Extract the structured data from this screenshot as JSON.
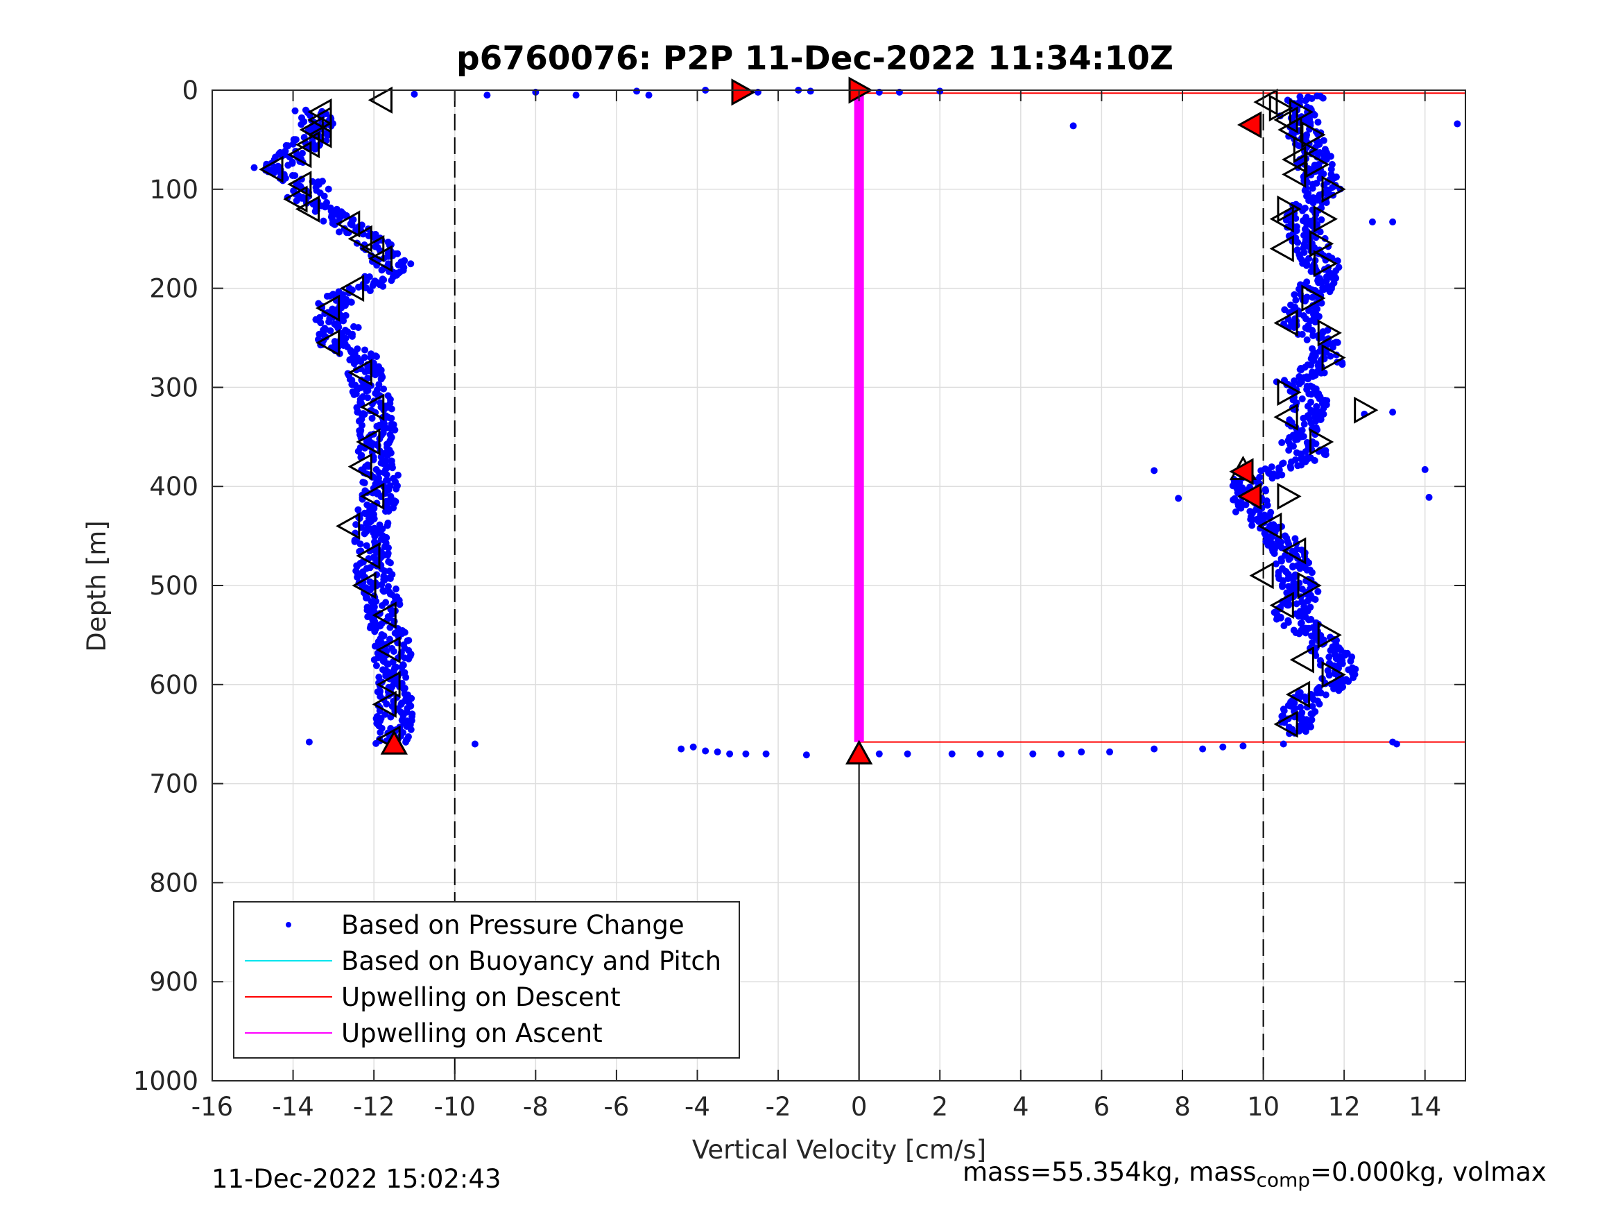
{
  "chart_data": {
    "type": "scatter",
    "title": "p6760076: P2P 11-Dec-2022 11:34:10Z",
    "xlabel": "Vertical Velocity [cm/s]",
    "ylabel": "Depth [m]",
    "xlim": [
      -16,
      15
    ],
    "ylim": [
      0,
      1000
    ],
    "y_reversed": true,
    "grid": true,
    "xticks": [
      -16,
      -14,
      -12,
      -10,
      -8,
      -6,
      -4,
      -2,
      0,
      2,
      4,
      6,
      8,
      10,
      12,
      14
    ],
    "yticks": [
      0,
      100,
      200,
      300,
      400,
      500,
      600,
      700,
      800,
      900,
      1000
    ],
    "legend_position": "bottom-left",
    "legend": [
      {
        "label": "Based on Pressure Change",
        "style": "dot",
        "color": "#0000ff"
      },
      {
        "label": "Based on Buoyancy and Pitch",
        "style": "line",
        "color": "#00e5ee"
      },
      {
        "label": "Upwelling on Descent",
        "style": "line",
        "color": "#ff0000"
      },
      {
        "label": "Upwelling on Ascent",
        "style": "line",
        "color": "#ff00ff"
      }
    ],
    "reference_lines": {
      "dashed_x": [
        -10,
        10
      ],
      "zero_line": {
        "x": 0,
        "from_depth": 670,
        "to_depth": 1000
      }
    },
    "series": [
      {
        "name": "Based on Pressure Change",
        "style": "scatter",
        "color": "#0000ff",
        "descent_profile": [
          [
            -13.5,
            20
          ],
          [
            -13.4,
            35
          ],
          [
            -13.6,
            50
          ],
          [
            -13.8,
            60
          ],
          [
            -14.2,
            72
          ],
          [
            -14.8,
            80
          ],
          [
            -13.5,
            95
          ],
          [
            -13.7,
            110
          ],
          [
            -12.9,
            130
          ],
          [
            -12.2,
            150
          ],
          [
            -11.7,
            165
          ],
          [
            -11.5,
            178
          ],
          [
            -12.0,
            195
          ],
          [
            -12.9,
            210
          ],
          [
            -13.2,
            225
          ],
          [
            -12.8,
            240
          ],
          [
            -13.1,
            255
          ],
          [
            -12.2,
            270
          ],
          [
            -12.2,
            290
          ],
          [
            -12.0,
            315
          ],
          [
            -11.9,
            340
          ],
          [
            -12.0,
            365
          ],
          [
            -11.8,
            390
          ],
          [
            -11.9,
            415
          ],
          [
            -12.1,
            440
          ],
          [
            -12.0,
            465
          ],
          [
            -12.0,
            490
          ],
          [
            -11.8,
            515
          ],
          [
            -11.7,
            540
          ],
          [
            -11.5,
            565
          ],
          [
            -11.6,
            590
          ],
          [
            -11.5,
            615
          ],
          [
            -11.5,
            640
          ],
          [
            -11.5,
            660
          ]
        ],
        "ascent_profile": [
          [
            11.2,
            5
          ],
          [
            10.8,
            20
          ],
          [
            11.0,
            40
          ],
          [
            11.2,
            60
          ],
          [
            11.3,
            80
          ],
          [
            11.5,
            100
          ],
          [
            11.0,
            120
          ],
          [
            11.0,
            140
          ],
          [
            11.2,
            160
          ],
          [
            11.5,
            180
          ],
          [
            11.3,
            200
          ],
          [
            11.0,
            215
          ],
          [
            10.9,
            235
          ],
          [
            11.6,
            255
          ],
          [
            11.6,
            275
          ],
          [
            10.7,
            295
          ],
          [
            11.2,
            315
          ],
          [
            11.0,
            335
          ],
          [
            10.8,
            355
          ],
          [
            11.3,
            370
          ],
          [
            9.6,
            395
          ],
          [
            9.7,
            415
          ],
          [
            9.8,
            430
          ],
          [
            10.2,
            445
          ],
          [
            10.7,
            470
          ],
          [
            10.8,
            490
          ],
          [
            11.0,
            510
          ],
          [
            10.6,
            530
          ],
          [
            11.3,
            550
          ],
          [
            11.8,
            575
          ],
          [
            11.9,
            595
          ],
          [
            11.0,
            615
          ],
          [
            10.8,
            635
          ],
          [
            10.8,
            650
          ]
        ],
        "surface_points": [
          [
            -3.8,
            0
          ],
          [
            -3.0,
            2
          ],
          [
            -2.5,
            2
          ],
          [
            -1.5,
            0
          ],
          [
            -1.2,
            1
          ],
          [
            0.5,
            2
          ],
          [
            1.0,
            2
          ],
          [
            2.0,
            1
          ],
          [
            -5.2,
            5
          ],
          [
            -7.0,
            5
          ],
          [
            -8.0,
            2
          ],
          [
            -9.2,
            5
          ],
          [
            -11.0,
            4
          ],
          [
            -5.5,
            1
          ]
        ],
        "bottom_points": [
          [
            -4.4,
            665
          ],
          [
            -4.1,
            663
          ],
          [
            -3.8,
            667
          ],
          [
            -3.5,
            668
          ],
          [
            -3.2,
            670
          ],
          [
            -2.8,
            670
          ],
          [
            -2.3,
            670
          ],
          [
            -1.3,
            671
          ],
          [
            0.5,
            670
          ],
          [
            1.2,
            670
          ],
          [
            2.3,
            670
          ],
          [
            3.0,
            670
          ],
          [
            3.5,
            670
          ],
          [
            4.3,
            670
          ],
          [
            5.0,
            670
          ],
          [
            5.5,
            668
          ],
          [
            6.2,
            668
          ],
          [
            7.3,
            665
          ],
          [
            8.5,
            665
          ],
          [
            9.0,
            663
          ],
          [
            9.5,
            662
          ],
          [
            10.5,
            660
          ],
          [
            -9.5,
            660
          ],
          [
            -13.6,
            658
          ],
          [
            13.2,
            658
          ],
          [
            13.3,
            660
          ]
        ],
        "outliers": [
          [
            14.8,
            34
          ],
          [
            5.3,
            36
          ],
          [
            7.3,
            384
          ],
          [
            7.9,
            412
          ],
          [
            14.0,
            383
          ],
          [
            14.1,
            411
          ],
          [
            12.5,
            327
          ],
          [
            13.2,
            325
          ],
          [
            13.2,
            133
          ],
          [
            12.7,
            133
          ]
        ]
      },
      {
        "name": "Upwelling on Descent",
        "style": "line",
        "color": "#ff0000",
        "segments": [
          {
            "x": [
              0,
              15
            ],
            "y": [
              3,
              3
            ]
          },
          {
            "x": [
              0,
              15
            ],
            "y": [
              658,
              658
            ]
          },
          {
            "x": [
              0,
              0
            ],
            "y": [
              658,
              670
            ]
          }
        ]
      },
      {
        "name": "Upwelling on Ascent",
        "style": "line",
        "color": "#ff00ff",
        "segments": [
          {
            "x": [
              0,
              0
            ],
            "y": [
              3,
              658
            ]
          }
        ]
      }
    ],
    "markers": {
      "open_left": [
        [
          -11.8,
          10
        ],
        [
          -13.3,
          22
        ],
        [
          -13.3,
          30
        ],
        [
          -13.5,
          40
        ],
        [
          -13.3,
          45
        ],
        [
          -13.6,
          55
        ],
        [
          -13.8,
          65
        ],
        [
          -14.5,
          80
        ],
        [
          -13.8,
          95
        ],
        [
          -13.9,
          110
        ],
        [
          -13.6,
          120
        ],
        [
          -12.6,
          135
        ],
        [
          -12.3,
          150
        ],
        [
          -12.0,
          160
        ],
        [
          -11.8,
          170
        ],
        [
          -12.5,
          200
        ],
        [
          -13.1,
          220
        ],
        [
          -13.1,
          255
        ],
        [
          -12.3,
          285
        ],
        [
          -12.0,
          320
        ],
        [
          -12.1,
          355
        ],
        [
          -12.3,
          380
        ],
        [
          -12.0,
          410
        ],
        [
          -12.6,
          440
        ],
        [
          -12.1,
          470
        ],
        [
          -12.2,
          500
        ],
        [
          -11.7,
          530
        ],
        [
          -11.6,
          565
        ],
        [
          -11.6,
          600
        ],
        [
          -11.7,
          620
        ],
        [
          -11.6,
          655
        ],
        [
          10.1,
          12
        ],
        [
          10.6,
          30
        ],
        [
          10.7,
          40
        ],
        [
          10.8,
          70
        ],
        [
          10.8,
          85
        ],
        [
          10.5,
          130
        ],
        [
          10.5,
          160
        ],
        [
          10.6,
          235
        ],
        [
          10.6,
          330
        ],
        [
          10.2,
          440
        ],
        [
          10.0,
          490
        ],
        [
          10.5,
          520
        ],
        [
          11.0,
          575
        ],
        [
          10.9,
          610
        ],
        [
          10.6,
          640
        ],
        [
          10.8,
          465
        ]
      ],
      "open_right": [
        [
          10.4,
          18
        ],
        [
          10.9,
          22
        ],
        [
          11.2,
          45
        ],
        [
          11.0,
          60
        ],
        [
          11.3,
          75
        ],
        [
          11.7,
          100
        ],
        [
          11.5,
          130
        ],
        [
          11.4,
          155
        ],
        [
          11.5,
          175
        ],
        [
          11.2,
          210
        ],
        [
          11.6,
          245
        ],
        [
          11.7,
          270
        ],
        [
          10.6,
          305
        ],
        [
          12.5,
          323
        ],
        [
          11.4,
          355
        ],
        [
          10.6,
          410
        ],
        [
          11.1,
          500
        ],
        [
          11.6,
          550
        ],
        [
          11.7,
          590
        ],
        [
          10.6,
          120
        ]
      ],
      "open_up": [
        [
          -11.5,
          660
        ],
        [
          9.5,
          383
        ],
        [
          0,
          670
        ]
      ],
      "filled_red": [
        [
          -2.9,
          2
        ],
        [
          0,
          0
        ],
        [
          9.7,
          35
        ],
        [
          9.5,
          385
        ],
        [
          9.7,
          410
        ],
        [
          -11.5,
          660
        ],
        [
          0,
          670
        ]
      ]
    }
  },
  "footer": {
    "timestamp": "11-Dec-2022 15:02:43",
    "mass_main": "mass=55.354kg, mass",
    "mass_sub": "comp",
    "mass_rest": "=0.000kg, volmax"
  }
}
